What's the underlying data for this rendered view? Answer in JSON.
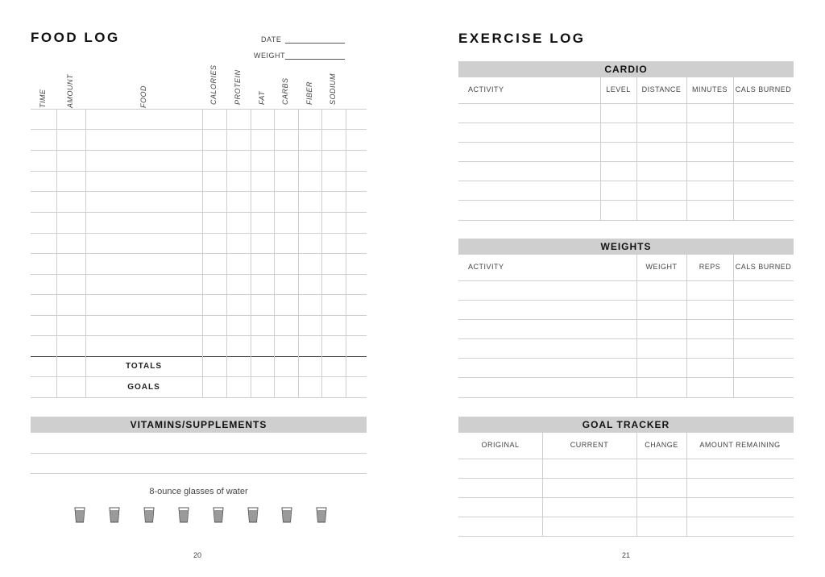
{
  "food_log": {
    "title": "FOOD LOG",
    "date_label": "DATE",
    "weight_label": "WEIGHT",
    "columns": [
      "TIME",
      "AMOUNT",
      "FOOD",
      "CALORIES",
      "PROTEIN",
      "FAT",
      "CARBS",
      "FIBER",
      "SODIUM"
    ],
    "totals_label": "TOTALS",
    "goals_label": "GOALS",
    "vitamins_title": "VITAMINS/SUPPLEMENTS",
    "water_label": "8-ounce glasses of water",
    "water_glass_count": 8,
    "page_number": "20"
  },
  "exercise_log": {
    "title": "EXERCISE LOG",
    "cardio": {
      "title": "CARDIO",
      "columns": [
        "ACTIVITY",
        "LEVEL",
        "DISTANCE",
        "MINUTES",
        "CALS BURNED"
      ]
    },
    "weights": {
      "title": "WEIGHTS",
      "columns": [
        "ACTIVITY",
        "WEIGHT",
        "REPS",
        "CALS BURNED"
      ]
    },
    "goal_tracker": {
      "title": "GOAL TRACKER",
      "columns": [
        "ORIGINAL",
        "CURRENT",
        "CHANGE",
        "AMOUNT REMAINING"
      ]
    },
    "page_number": "21"
  },
  "colors": {
    "section_bar": "#cfcfcf",
    "rule": "#cfcfcf",
    "glass": "#9a9a9a"
  }
}
